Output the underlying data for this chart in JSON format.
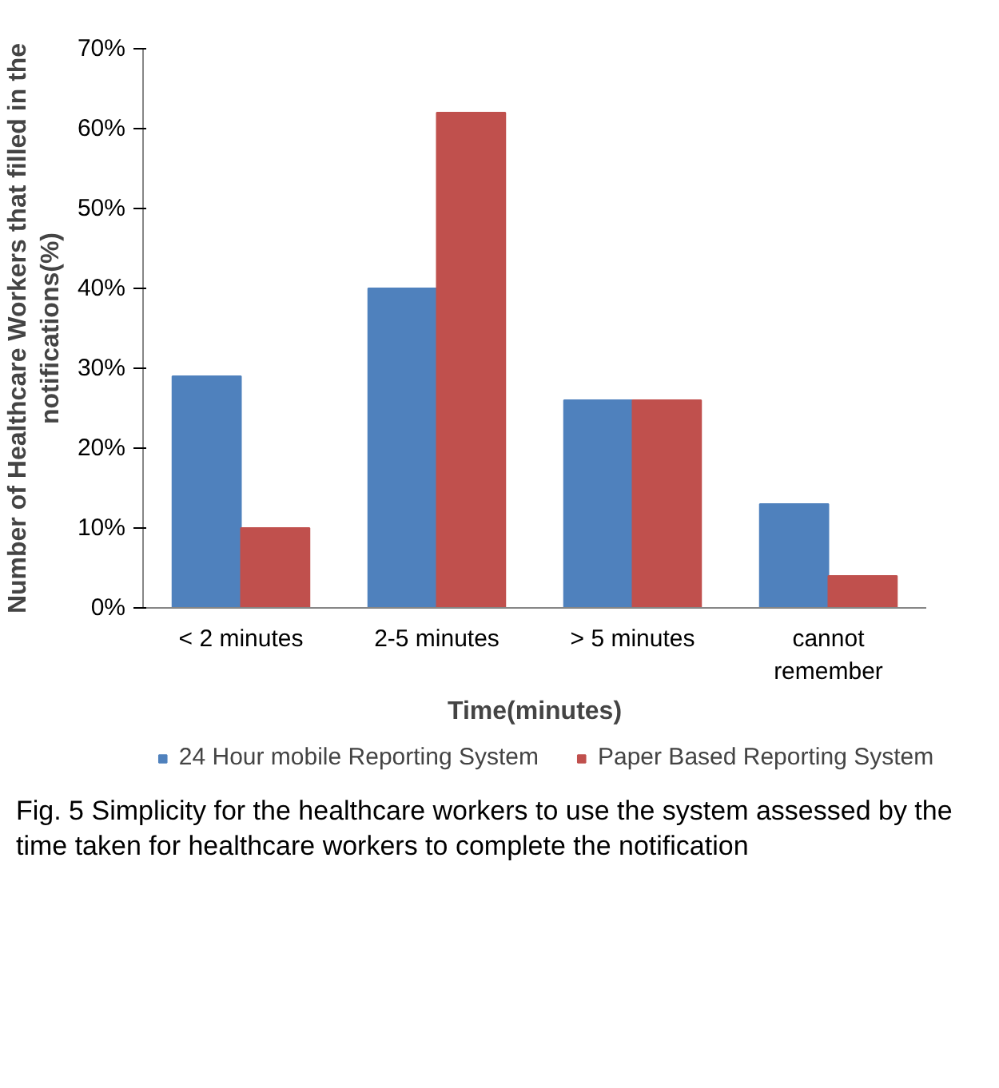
{
  "chart_data": {
    "type": "bar",
    "xlabel": "Time(minutes)",
    "ylabel": "Number of Healthcare Workers that filled in the notifications(%)",
    "categories": [
      "< 2 minutes",
      "2-5 minutes",
      "> 5 minutes",
      "cannot remember"
    ],
    "series": [
      {
        "name": "24 Hour mobile Reporting System",
        "color": "#4f81bd",
        "values": [
          29,
          40,
          26,
          13
        ]
      },
      {
        "name": "Paper Based Reporting System",
        "color": "#c0504d",
        "values": [
          10,
          62,
          26,
          4
        ]
      }
    ],
    "ylim": [
      0,
      70
    ],
    "yticks": [
      {
        "value": 0,
        "label": "0%"
      },
      {
        "value": 10,
        "label": "10%"
      },
      {
        "value": 20,
        "label": "20%"
      },
      {
        "value": 30,
        "label": "30%"
      },
      {
        "value": 40,
        "label": "40%"
      },
      {
        "value": 50,
        "label": "50%"
      },
      {
        "value": 60,
        "label": "60%"
      },
      {
        "value": 70,
        "label": "70%"
      }
    ],
    "grid": false,
    "legend": "bottom",
    "annotations": [
      "Fig. 5 Simplicity for the healthcare workers to use the system assessed by the time taken for healthcare workers to complete the notification"
    ]
  }
}
